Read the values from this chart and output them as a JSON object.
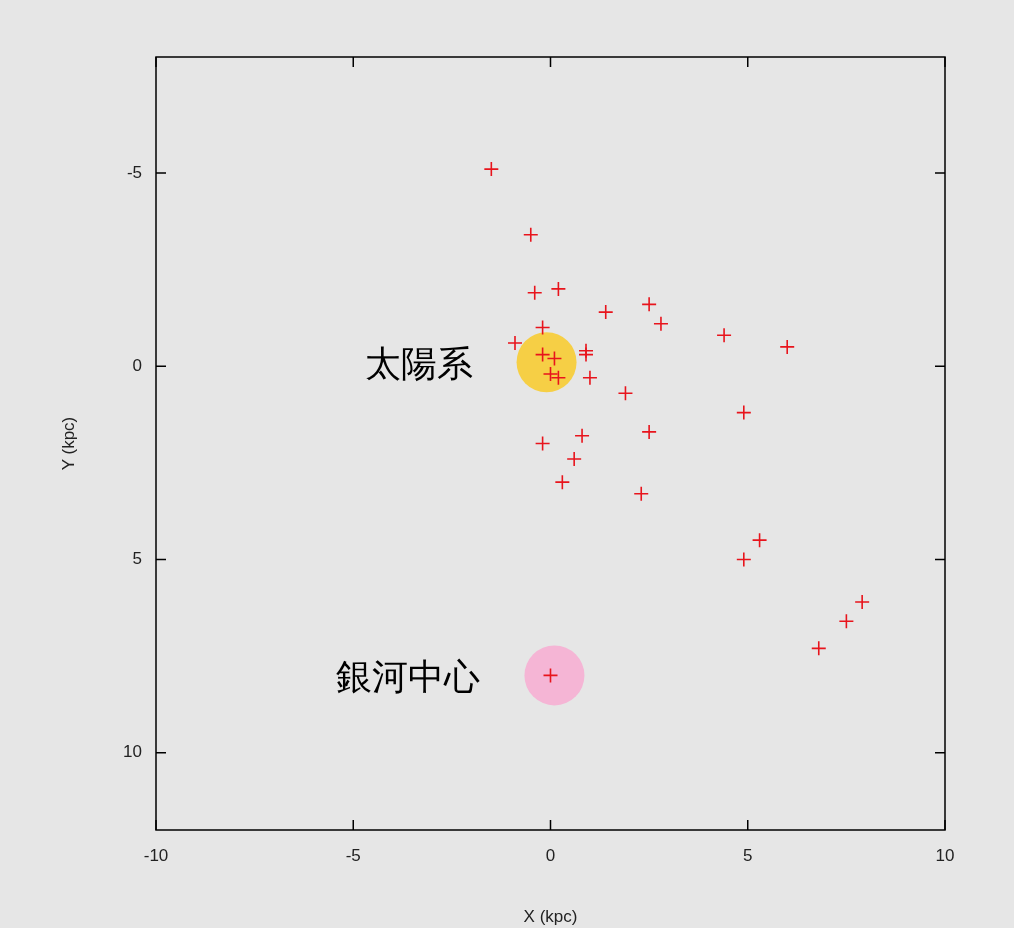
{
  "chart_data": {
    "type": "scatter",
    "xlabel": "X (kpc)",
    "ylabel": "Y (kpc)",
    "xlim": [
      -10,
      10
    ],
    "ylim": [
      12,
      -8
    ],
    "xticks": [
      -10,
      -5,
      0,
      5,
      10
    ],
    "yticks": [
      -5,
      0,
      5,
      10
    ],
    "series": [
      {
        "color": "#e8141c",
        "marker": "cross",
        "x": [
          -1.5,
          -0.5,
          -0.4,
          0.2,
          1.4,
          2.5,
          2.8,
          -0.2,
          -0.9,
          -0.2,
          0.1,
          0.0,
          0.2,
          0.9,
          0.9,
          1.0,
          1.9,
          4.4,
          6.0,
          4.9,
          2.5,
          -0.2,
          0.8,
          0.6,
          0.3,
          2.3,
          5.3,
          4.9,
          7.9,
          7.5,
          6.8,
          0.0
        ],
        "values": [
          -5.1,
          -3.4,
          -1.9,
          -2.0,
          -1.4,
          -1.6,
          -1.1,
          -1.0,
          -0.6,
          -0.3,
          -0.2,
          0.2,
          0.3,
          -0.4,
          -0.3,
          0.3,
          0.7,
          -0.8,
          -0.5,
          1.2,
          1.7,
          2.0,
          1.8,
          2.4,
          3.0,
          3.3,
          4.5,
          5.0,
          6.1,
          6.6,
          7.3,
          8.0
        ]
      },
      {
        "type": "bubble",
        "marker": "circle",
        "colors": [
          "#f6cf45",
          "#f5b5d5"
        ],
        "x": [
          -0.1,
          0.1
        ],
        "values": [
          -0.1,
          8.0
        ],
        "sizes": [
          1,
          1
        ]
      }
    ],
    "annotations": [
      {
        "text": "太陽系",
        "x": -0.1,
        "y": -0.1
      },
      {
        "text": "銀河中心",
        "x": 0.1,
        "y": 8.0
      }
    ]
  }
}
